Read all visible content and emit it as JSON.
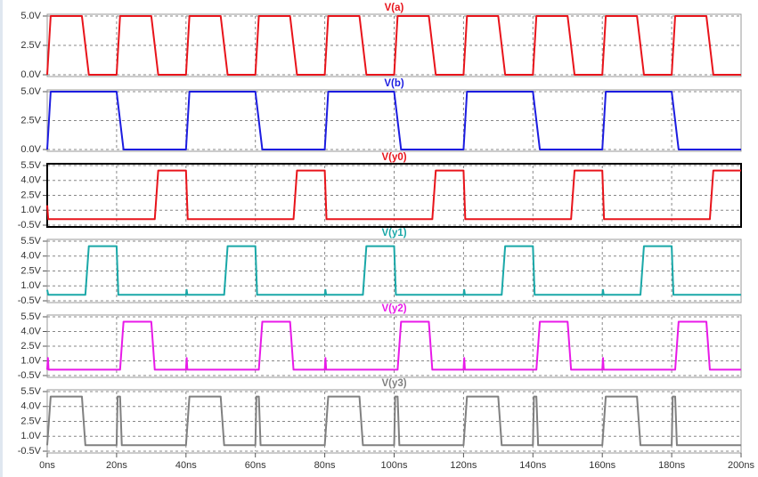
{
  "chart_data": [
    {
      "type": "line",
      "title": "V(a)",
      "color": "#e8141b",
      "grid": true,
      "xlim": [
        0,
        200
      ],
      "ylim": [
        0,
        5
      ],
      "yticks": [
        {
          "value": 0,
          "label": "0.0V"
        },
        {
          "value": 2.5,
          "label": "2.5V"
        },
        {
          "value": 5,
          "label": "5.0V"
        }
      ],
      "x": [
        0,
        1,
        10,
        12,
        20,
        21,
        30,
        32,
        40,
        41,
        50,
        52,
        60,
        61,
        70,
        72,
        80,
        81,
        90,
        92,
        100,
        101,
        110,
        112,
        120,
        121,
        130,
        132,
        140,
        141,
        150,
        152,
        160,
        161,
        170,
        172,
        180,
        181,
        190,
        192,
        200
      ],
      "values": [
        0,
        5,
        5,
        0,
        0,
        5,
        5,
        0,
        0,
        5,
        5,
        0,
        0,
        5,
        5,
        0,
        0,
        5,
        5,
        0,
        0,
        5,
        5,
        0,
        0,
        5,
        5,
        0,
        0,
        5,
        5,
        0,
        0,
        5,
        5,
        0,
        0,
        5,
        5,
        0,
        0
      ]
    },
    {
      "type": "line",
      "title": "V(b)",
      "color": "#1c1ce0",
      "grid": true,
      "xlim": [
        0,
        200
      ],
      "ylim": [
        0,
        5
      ],
      "yticks": [
        {
          "value": 0,
          "label": "0.0V"
        },
        {
          "value": 2.5,
          "label": "2.5V"
        },
        {
          "value": 5,
          "label": "5.0V"
        }
      ],
      "x": [
        0,
        1,
        20,
        22,
        40,
        41,
        60,
        62,
        80,
        81,
        100,
        102,
        120,
        121,
        140,
        142,
        160,
        161,
        180,
        182,
        200
      ],
      "values": [
        0,
        5,
        5,
        0,
        0,
        5,
        5,
        0,
        0,
        5,
        5,
        0,
        0,
        5,
        5,
        0,
        0,
        5,
        5,
        0,
        0
      ]
    },
    {
      "type": "line",
      "title": "V(y0)",
      "color": "#e8141b",
      "grid": true,
      "selected": true,
      "xlim": [
        0,
        200
      ],
      "ylim": [
        -0.5,
        5.5
      ],
      "yticks": [
        {
          "value": -0.5,
          "label": "-0.5V"
        },
        {
          "value": 1,
          "label": "1.0V"
        },
        {
          "value": 2.5,
          "label": "2.5V"
        },
        {
          "value": 4,
          "label": "4.0V"
        },
        {
          "value": 5.5,
          "label": "5.5V"
        }
      ],
      "x": [
        0,
        0.3,
        31,
        32,
        40,
        40.5,
        71,
        72,
        80,
        80.5,
        111,
        112,
        120,
        120.5,
        151,
        152,
        160,
        160.5,
        191,
        192,
        200
      ],
      "values": [
        1.5,
        0.1,
        0.1,
        5,
        5,
        0.1,
        0.1,
        5,
        5,
        0.1,
        0.1,
        5,
        5,
        0.1,
        0.1,
        5,
        5,
        0.1,
        0.1,
        5,
        5
      ]
    },
    {
      "type": "line",
      "title": "V(y1)",
      "color": "#1aa8a8",
      "grid": true,
      "xlim": [
        0,
        200
      ],
      "ylim": [
        -0.5,
        5.5
      ],
      "yticks": [
        {
          "value": -0.5,
          "label": "-0.5V"
        },
        {
          "value": 1,
          "label": "1.0V"
        },
        {
          "value": 2.5,
          "label": "2.5V"
        },
        {
          "value": 4,
          "label": "4.0V"
        },
        {
          "value": 5.5,
          "label": "5.5V"
        }
      ],
      "x": [
        0,
        0.3,
        11,
        12,
        20,
        20.5,
        40,
        40.2,
        40.4,
        51,
        52,
        60,
        60.5,
        80,
        80.2,
        80.4,
        91,
        92,
        100,
        100.5,
        120,
        120.2,
        120.4,
        131,
        132,
        140,
        140.5,
        160,
        160.2,
        160.4,
        171,
        172,
        180,
        180.5,
        200
      ],
      "values": [
        0.6,
        0.1,
        0.1,
        5,
        5,
        0.1,
        0.1,
        0.6,
        0.1,
        0.1,
        5,
        5,
        0.1,
        0.1,
        0.6,
        0.1,
        0.1,
        5,
        5,
        0.1,
        0.1,
        0.6,
        0.1,
        0.1,
        5,
        5,
        0.1,
        0.1,
        0.6,
        0.1,
        0.1,
        5,
        5,
        0.1,
        0.1
      ]
    },
    {
      "type": "line",
      "title": "V(y2)",
      "color": "#e81ae8",
      "grid": true,
      "xlim": [
        0,
        200
      ],
      "ylim": [
        -0.5,
        5.5
      ],
      "yticks": [
        {
          "value": -0.5,
          "label": "-0.5V"
        },
        {
          "value": 1,
          "label": "1.0V"
        },
        {
          "value": 2.5,
          "label": "2.5V"
        },
        {
          "value": 4,
          "label": "4.0V"
        },
        {
          "value": 5.5,
          "label": "5.5V"
        }
      ],
      "x": [
        0,
        0.2,
        0.4,
        21,
        22,
        30,
        31,
        40,
        40.2,
        40.4,
        61,
        62,
        70,
        71,
        80,
        80.2,
        80.4,
        101,
        102,
        110,
        111,
        120,
        120.2,
        120.4,
        141,
        142,
        150,
        151,
        160,
        160.2,
        160.4,
        181,
        182,
        190,
        191,
        200
      ],
      "values": [
        0.1,
        1.3,
        0.1,
        0.1,
        5,
        5,
        0.1,
        0.1,
        1.3,
        0.1,
        0.1,
        5,
        5,
        0.1,
        0.1,
        1.3,
        0.1,
        0.1,
        5,
        5,
        0.1,
        0.1,
        1.3,
        0.1,
        0.1,
        5,
        5,
        0.1,
        0.1,
        1.3,
        0.1,
        0.1,
        5,
        5,
        0.1,
        0.1
      ]
    },
    {
      "type": "line",
      "title": "V(y3)",
      "color": "#808080",
      "grid": true,
      "xlim": [
        0,
        200
      ],
      "ylim": [
        -0.5,
        5.5
      ],
      "yticks": [
        {
          "value": -0.5,
          "label": "-0.5V"
        },
        {
          "value": 1,
          "label": "1.0V"
        },
        {
          "value": 2.5,
          "label": "2.5V"
        },
        {
          "value": 4,
          "label": "4.0V"
        },
        {
          "value": 5.5,
          "label": "5.5V"
        }
      ],
      "xticks": [
        {
          "value": 0,
          "label": "0ns"
        },
        {
          "value": 20,
          "label": "20ns"
        },
        {
          "value": 40,
          "label": "40ns"
        },
        {
          "value": 60,
          "label": "60ns"
        },
        {
          "value": 80,
          "label": "80ns"
        },
        {
          "value": 100,
          "label": "100ns"
        },
        {
          "value": 120,
          "label": "120ns"
        },
        {
          "value": 140,
          "label": "140ns"
        },
        {
          "value": 160,
          "label": "160ns"
        },
        {
          "value": 180,
          "label": "180ns"
        },
        {
          "value": 200,
          "label": "200ns"
        }
      ],
      "x": [
        0,
        1,
        10,
        11,
        20,
        20.3,
        21,
        21.5,
        40,
        41,
        50,
        51,
        60,
        60.3,
        61,
        61.5,
        80,
        81,
        90,
        91,
        100,
        100.3,
        101,
        101.5,
        120,
        121,
        130,
        131,
        140,
        140.3,
        141,
        141.5,
        160,
        161,
        170,
        171,
        180,
        180.3,
        181,
        181.5,
        200
      ],
      "values": [
        0.1,
        5,
        5,
        0.1,
        0.1,
        5,
        5,
        0.1,
        0.1,
        5,
        5,
        0.1,
        0.1,
        5,
        5,
        0.1,
        0.1,
        5,
        5,
        0.1,
        0.1,
        5,
        5,
        0.1,
        0.1,
        5,
        5,
        0.1,
        0.1,
        5,
        5,
        0.1,
        0.1,
        5,
        5,
        0.1,
        0.1,
        5,
        5,
        0.1,
        0.1
      ]
    }
  ]
}
